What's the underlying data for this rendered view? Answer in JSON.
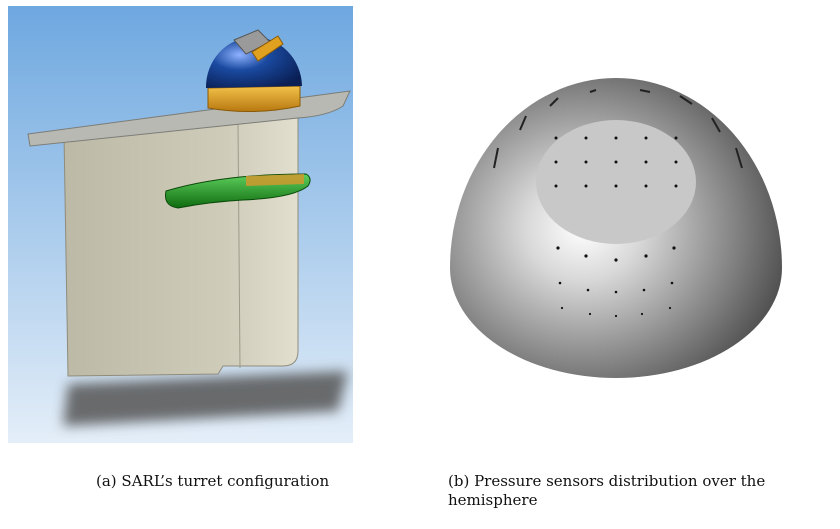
{
  "figures": [
    {
      "caption": "(a) SARL’s turret configuration",
      "image_icon": "turret-render-icon",
      "colors": {
        "sky_top": "#6ea8e0",
        "sky_bottom": "#e4eef8",
        "body": "#c9c6b4",
        "dome": "#1a4aa0",
        "ring": "#e0a020",
        "fairing": "#1f8a1f"
      }
    },
    {
      "caption": "(b) Pressure sensors distribution over the hemisphere",
      "image_icon": "hemisphere-sensors-icon",
      "colors": {
        "sphere_dark": "#3a3a3a",
        "sphere_light": "#ffffff",
        "window": "#c8c8c8"
      }
    }
  ]
}
